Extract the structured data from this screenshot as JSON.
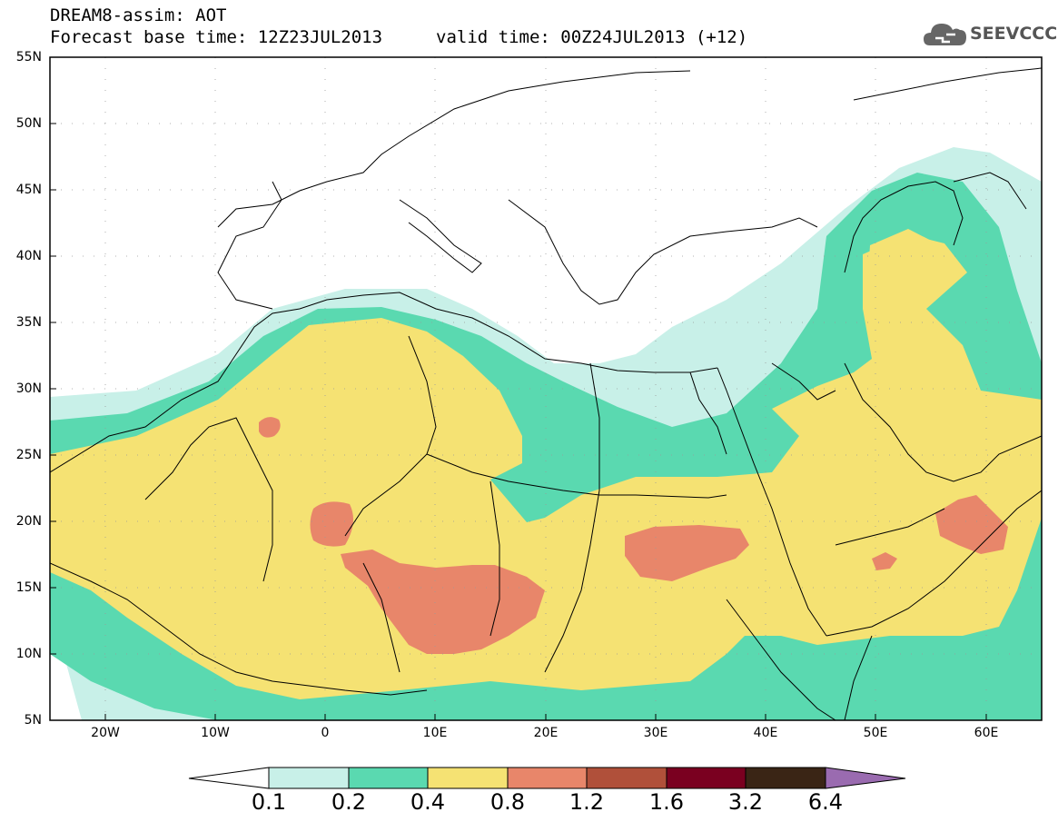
{
  "header": {
    "line1": "DREAM8-assim: AOT",
    "line2": "Forecast base time: 12Z23JUL2013",
    "valid": "valid time: 00Z24JUL2013 (+12)"
  },
  "logo": {
    "text": "SEEVCCC",
    "icon": "cloud-icon"
  },
  "axes": {
    "lat_labels": [
      "55N",
      "50N",
      "45N",
      "40N",
      "35N",
      "30N",
      "25N",
      "20N",
      "15N",
      "10N",
      "5N"
    ],
    "lon_labels": [
      "20W",
      "10W",
      "0",
      "10E",
      "20E",
      "30E",
      "40E",
      "50E",
      "60E"
    ],
    "lat_range": [
      5,
      55
    ],
    "lon_range": [
      -25,
      65
    ]
  },
  "colorbar": {
    "labels": [
      "0.1",
      "0.2",
      "0.4",
      "0.8",
      "1.2",
      "1.6",
      "3.2",
      "6.4"
    ],
    "colors": [
      "#ffffff",
      "#c8f0e8",
      "#5ad9b0",
      "#f5e273",
      "#e8866a",
      "#b0503a",
      "#7a0020",
      "#3a2515",
      "#9a6bb0"
    ]
  }
}
